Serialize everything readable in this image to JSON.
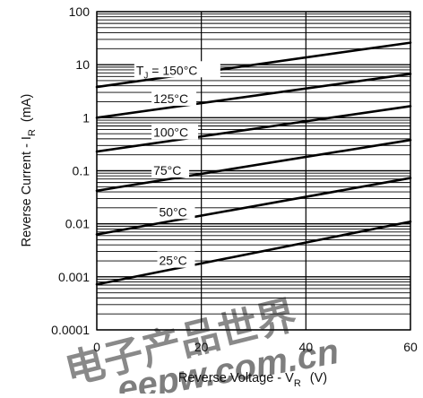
{
  "chart_data": {
    "type": "line",
    "title": "",
    "xlabel": "Reverse Voltage - V",
    "xlabel_sub": "R",
    "xlabel_unit": "(V)",
    "ylabel": "Reverse Current - I",
    "ylabel_sub": "R",
    "ylabel_unit": "(mA)",
    "xlim": [
      0,
      60
    ],
    "ylim": [
      0.0001,
      100
    ],
    "yscale": "log",
    "grid": true,
    "x_ticks": [
      "0",
      "20",
      "40",
      "60"
    ],
    "y_ticks": [
      "0.0001",
      "0.001",
      "0.01",
      "0.1",
      "1",
      "10",
      "100"
    ],
    "series": [
      {
        "name": "T",
        "name_sub": "J",
        "name_suffix": " = 150°C",
        "x": [
          0,
          60
        ],
        "y": [
          3.8,
          26
        ]
      },
      {
        "name": "125°C",
        "x": [
          0,
          60
        ],
        "y": [
          1.0,
          6.7
        ]
      },
      {
        "name": "100°C",
        "x": [
          0,
          60
        ],
        "y": [
          0.23,
          1.65
        ]
      },
      {
        "name": "75°C",
        "x": [
          0,
          60
        ],
        "y": [
          0.042,
          0.38
        ]
      },
      {
        "name": "50°C",
        "x": [
          0,
          60
        ],
        "y": [
          0.0063,
          0.073
        ]
      },
      {
        "name": "25°C",
        "x": [
          0,
          60
        ],
        "y": [
          0.00072,
          0.011
        ]
      }
    ]
  },
  "watermark": {
    "line1": "电子产品世界",
    "line2": "eepw.com.cn",
    "color": "#e02020"
  }
}
